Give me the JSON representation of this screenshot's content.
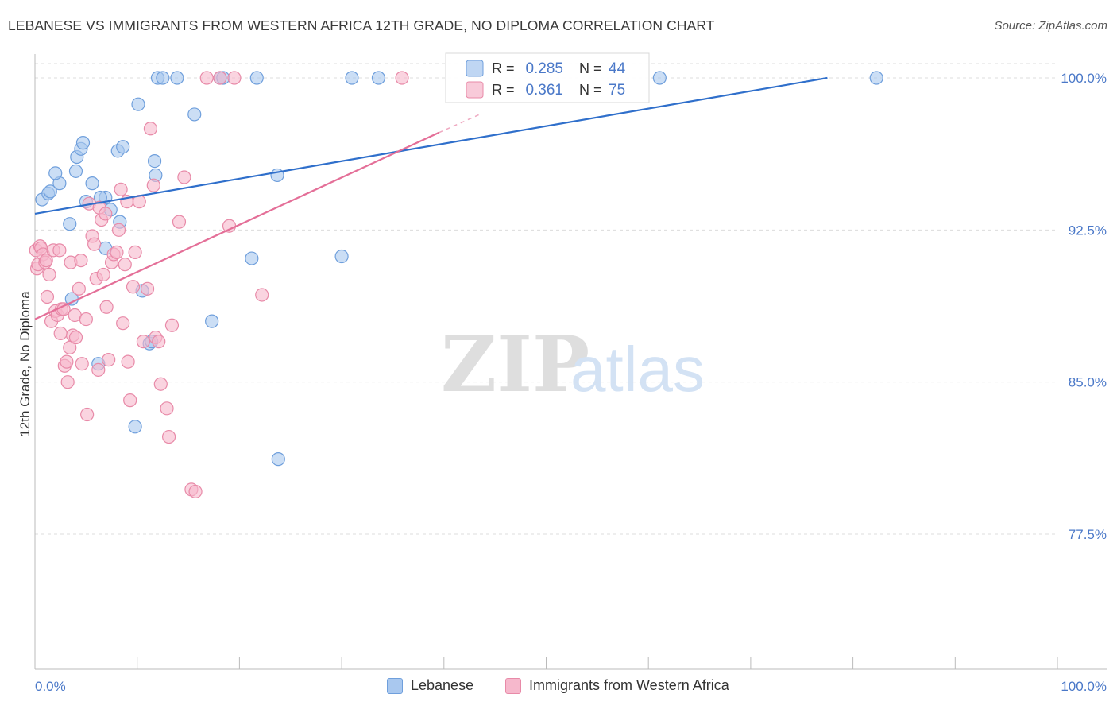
{
  "header": {
    "title": "LEBANESE VS IMMIGRANTS FROM WESTERN AFRICA 12TH GRADE, NO DIPLOMA CORRELATION CHART",
    "source": "Source: ZipAtlas.com"
  },
  "watermark": {
    "zip": "ZIP",
    "atlas": "atlas"
  },
  "colors": {
    "blue_fill": "#a9c8ef",
    "blue_stroke": "#6f9fdc",
    "blue_line": "#2f6fcb",
    "pink_fill": "#f6b8cc",
    "pink_stroke": "#e88aa8",
    "pink_line": "#e46f98",
    "axis_label": "#4a78c8",
    "grid": "#dcdcdc"
  },
  "legend": {
    "rows": [
      {
        "r_label": "R =",
        "r_value": "0.285",
        "n_label": "N =",
        "n_value": "44"
      },
      {
        "r_label": "R =",
        "r_value": "0.361",
        "n_label": "N =",
        "n_value": "75"
      }
    ]
  },
  "bottom_legend": {
    "series1": "Lebanese",
    "series2": "Immigrants from Western Africa"
  },
  "chart_data": {
    "type": "scatter",
    "title": "LEBANESE VS IMMIGRANTS FROM WESTERN AFRICA 12TH GRADE, NO DIPLOMA CORRELATION CHART",
    "xlabel": "",
    "ylabel": "12th Grade, No Diploma",
    "xlim": [
      0,
      100
    ],
    "ylim": [
      71.5,
      101.5
    ],
    "x_tick_labels": [
      "0.0%",
      "100.0%"
    ],
    "y_ticks": [
      77.5,
      85.0,
      92.5,
      100.0
    ],
    "y_tick_labels": [
      "77.5%",
      "85.0%",
      "92.5%",
      "100.0%"
    ],
    "grid": true,
    "legend_position": "top-center",
    "series": [
      {
        "name": "Lebanese",
        "r": 0.285,
        "n": 44,
        "trend": {
          "x": [
            0,
            77.5
          ],
          "y": [
            93.3,
            100.0
          ]
        },
        "points": [
          [
            0.7,
            94.0
          ],
          [
            1.3,
            94.3
          ],
          [
            1.5,
            94.4
          ],
          [
            2.4,
            94.8
          ],
          [
            2.0,
            95.3
          ],
          [
            3.4,
            92.8
          ],
          [
            3.6,
            89.1
          ],
          [
            4.1,
            96.1
          ],
          [
            4.0,
            95.4
          ],
          [
            4.5,
            96.5
          ],
          [
            4.7,
            96.8
          ],
          [
            5.6,
            94.8
          ],
          [
            5.0,
            93.9
          ],
          [
            6.9,
            94.1
          ],
          [
            6.9,
            91.6
          ],
          [
            7.4,
            93.5
          ],
          [
            6.2,
            85.9
          ],
          [
            6.4,
            94.1
          ],
          [
            8.3,
            92.9
          ],
          [
            8.1,
            96.4
          ],
          [
            8.6,
            96.6
          ],
          [
            9.8,
            82.8
          ],
          [
            10.1,
            98.7
          ],
          [
            10.5,
            89.5
          ],
          [
            11.2,
            86.9
          ],
          [
            11.4,
            87.0
          ],
          [
            11.7,
            95.9
          ],
          [
            11.8,
            95.2
          ],
          [
            12.0,
            100.0
          ],
          [
            12.5,
            100.0
          ],
          [
            13.9,
            100.0
          ],
          [
            15.6,
            98.2
          ],
          [
            17.3,
            88.0
          ],
          [
            18.1,
            100.0
          ],
          [
            18.4,
            100.0
          ],
          [
            21.2,
            91.1
          ],
          [
            21.7,
            100.0
          ],
          [
            23.7,
            95.2
          ],
          [
            23.8,
            81.2
          ],
          [
            30.0,
            91.2
          ],
          [
            31.0,
            100.0
          ],
          [
            33.6,
            100.0
          ],
          [
            61.1,
            100.0
          ],
          [
            82.3,
            100.0
          ]
        ]
      },
      {
        "name": "Immigrants from Western Africa",
        "r": 0.361,
        "n": 75,
        "trend": {
          "x": [
            0,
            39.5
          ],
          "y": [
            88.1,
            97.3
          ]
        },
        "trend_dashed": {
          "x": [
            39.5,
            43.5
          ],
          "y": [
            97.3,
            98.2
          ]
        },
        "points": [
          [
            0.1,
            91.5
          ],
          [
            0.2,
            90.6
          ],
          [
            0.3,
            90.8
          ],
          [
            0.5,
            91.7
          ],
          [
            0.6,
            91.6
          ],
          [
            0.8,
            91.3
          ],
          [
            1.0,
            90.9
          ],
          [
            1.1,
            91.0
          ],
          [
            1.2,
            89.2
          ],
          [
            1.4,
            90.3
          ],
          [
            1.6,
            88.0
          ],
          [
            1.8,
            91.5
          ],
          [
            2.0,
            88.5
          ],
          [
            2.2,
            88.3
          ],
          [
            2.4,
            91.5
          ],
          [
            2.5,
            87.4
          ],
          [
            2.6,
            88.6
          ],
          [
            2.8,
            88.6
          ],
          [
            2.9,
            85.8
          ],
          [
            3.1,
            86.0
          ],
          [
            3.2,
            85.0
          ],
          [
            3.4,
            86.7
          ],
          [
            3.5,
            90.9
          ],
          [
            3.7,
            87.3
          ],
          [
            3.9,
            88.3
          ],
          [
            4.0,
            87.2
          ],
          [
            4.3,
            89.6
          ],
          [
            4.5,
            91.0
          ],
          [
            4.6,
            85.9
          ],
          [
            5.0,
            88.1
          ],
          [
            5.1,
            83.4
          ],
          [
            5.3,
            93.8
          ],
          [
            5.6,
            92.2
          ],
          [
            5.8,
            91.8
          ],
          [
            6.0,
            90.1
          ],
          [
            6.2,
            85.6
          ],
          [
            6.3,
            93.6
          ],
          [
            6.5,
            93.0
          ],
          [
            6.7,
            90.3
          ],
          [
            6.9,
            93.3
          ],
          [
            7.0,
            88.7
          ],
          [
            7.2,
            86.1
          ],
          [
            7.5,
            90.9
          ],
          [
            7.7,
            91.3
          ],
          [
            8.0,
            91.4
          ],
          [
            8.2,
            92.5
          ],
          [
            8.4,
            94.5
          ],
          [
            8.6,
            87.9
          ],
          [
            8.8,
            90.8
          ],
          [
            9.0,
            93.9
          ],
          [
            9.1,
            86.0
          ],
          [
            9.3,
            84.1
          ],
          [
            9.6,
            89.7
          ],
          [
            9.8,
            91.4
          ],
          [
            10.2,
            93.9
          ],
          [
            10.6,
            87.0
          ],
          [
            11.0,
            89.6
          ],
          [
            11.3,
            97.5
          ],
          [
            11.6,
            94.7
          ],
          [
            11.8,
            87.2
          ],
          [
            12.1,
            87.0
          ],
          [
            12.3,
            84.9
          ],
          [
            12.9,
            83.7
          ],
          [
            13.1,
            82.3
          ],
          [
            13.4,
            87.8
          ],
          [
            14.1,
            92.9
          ],
          [
            14.6,
            95.1
          ],
          [
            15.3,
            79.7
          ],
          [
            15.7,
            79.6
          ],
          [
            16.8,
            100.0
          ],
          [
            18.1,
            100.0
          ],
          [
            19.0,
            92.7
          ],
          [
            19.5,
            100.0
          ],
          [
            22.2,
            89.3
          ],
          [
            35.9,
            100.0
          ]
        ]
      }
    ]
  }
}
